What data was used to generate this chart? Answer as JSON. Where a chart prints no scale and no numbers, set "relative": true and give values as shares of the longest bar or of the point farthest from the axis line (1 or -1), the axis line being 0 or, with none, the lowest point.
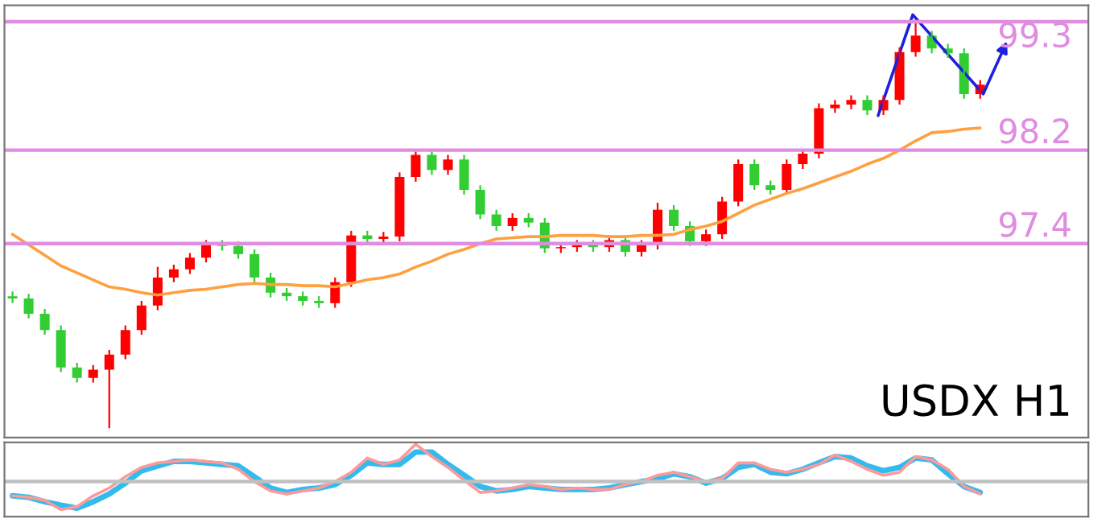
{
  "chart_data": [
    {
      "type": "candlestick",
      "categories": [
        null,
        null,
        null,
        null,
        null,
        null,
        null,
        null,
        null,
        null,
        null,
        null,
        null,
        null,
        null,
        null,
        null,
        null,
        null,
        null,
        null,
        null,
        null,
        null,
        null,
        null,
        null,
        null,
        null,
        null,
        null,
        null,
        null,
        null,
        null,
        null,
        null,
        null,
        null,
        null,
        null,
        null,
        null,
        null,
        null,
        null,
        null,
        null,
        null,
        null,
        null,
        null,
        null,
        null,
        null,
        null,
        null,
        null,
        null,
        null,
        null
      ],
      "ohlc": [
        [
          96.95,
          96.99,
          96.89,
          96.93
        ],
        [
          96.93,
          96.97,
          96.76,
          96.8
        ],
        [
          96.8,
          96.84,
          96.62,
          96.66
        ],
        [
          96.66,
          96.7,
          96.3,
          96.34
        ],
        [
          96.34,
          96.38,
          96.21,
          96.25
        ],
        [
          96.25,
          96.36,
          96.21,
          96.32
        ],
        [
          96.32,
          96.49,
          95.82,
          96.45
        ],
        [
          96.45,
          96.7,
          96.41,
          96.66
        ],
        [
          96.66,
          96.91,
          96.62,
          96.87
        ],
        [
          96.87,
          97.2,
          96.83,
          97.11
        ],
        [
          97.11,
          97.22,
          97.07,
          97.18
        ],
        [
          97.18,
          97.32,
          97.14,
          97.28
        ],
        [
          97.28,
          97.43,
          97.24,
          97.39
        ],
        [
          97.39,
          97.43,
          97.34,
          97.38
        ],
        [
          97.38,
          97.42,
          97.27,
          97.31
        ],
        [
          97.31,
          97.35,
          97.07,
          97.11
        ],
        [
          97.11,
          97.15,
          96.94,
          96.98
        ],
        [
          96.98,
          97.02,
          96.91,
          96.95
        ],
        [
          96.95,
          96.99,
          96.87,
          96.91
        ],
        [
          96.91,
          96.95,
          96.85,
          96.89
        ],
        [
          96.89,
          97.11,
          96.85,
          97.07
        ],
        [
          97.07,
          97.51,
          97.03,
          97.47
        ],
        [
          97.47,
          97.51,
          97.4,
          97.44
        ],
        [
          97.44,
          97.5,
          97.4,
          97.46
        ],
        [
          97.46,
          98.01,
          97.42,
          97.97
        ],
        [
          97.97,
          98.2,
          97.93,
          98.16
        ],
        [
          98.16,
          98.2,
          97.99,
          98.03
        ],
        [
          98.03,
          98.16,
          97.99,
          98.12
        ],
        [
          98.12,
          98.16,
          97.82,
          97.86
        ],
        [
          97.86,
          97.9,
          97.61,
          97.65
        ],
        [
          97.65,
          97.69,
          97.51,
          97.55
        ],
        [
          97.55,
          97.66,
          97.51,
          97.62
        ],
        [
          97.62,
          97.66,
          97.54,
          97.58
        ],
        [
          97.58,
          97.62,
          97.32,
          97.36
        ],
        [
          97.36,
          97.41,
          97.32,
          97.37
        ],
        [
          97.37,
          97.43,
          97.33,
          97.39
        ],
        [
          97.39,
          97.43,
          97.33,
          97.37
        ],
        [
          97.37,
          97.47,
          97.33,
          97.43
        ],
        [
          97.43,
          97.47,
          97.29,
          97.33
        ],
        [
          97.33,
          97.43,
          97.29,
          97.39
        ],
        [
          97.39,
          97.75,
          97.35,
          97.69
        ],
        [
          97.69,
          97.73,
          97.51,
          97.55
        ],
        [
          97.55,
          97.59,
          97.38,
          97.42
        ],
        [
          97.42,
          97.52,
          97.38,
          97.48
        ],
        [
          97.48,
          97.8,
          97.44,
          97.76
        ],
        [
          97.76,
          98.12,
          97.72,
          98.08
        ],
        [
          98.08,
          98.12,
          97.86,
          97.9
        ],
        [
          97.9,
          97.94,
          97.82,
          97.86
        ],
        [
          97.86,
          98.12,
          97.82,
          98.08
        ],
        [
          98.08,
          98.21,
          98.04,
          98.17
        ],
        [
          98.17,
          98.6,
          98.13,
          98.56
        ],
        [
          98.56,
          98.63,
          98.52,
          98.59
        ],
        [
          98.59,
          98.67,
          98.55,
          98.63
        ],
        [
          98.63,
          98.67,
          98.5,
          98.54
        ],
        [
          98.54,
          98.67,
          98.5,
          98.63
        ],
        [
          98.63,
          99.08,
          98.59,
          99.04
        ],
        [
          99.04,
          99.3,
          99.0,
          99.18
        ],
        [
          99.18,
          99.22,
          99.03,
          99.07
        ],
        [
          99.07,
          99.11,
          98.99,
          99.03
        ],
        [
          99.03,
          99.07,
          98.64,
          98.68
        ],
        [
          98.68,
          98.8,
          98.64,
          98.76
        ]
      ],
      "colors": [
        "#32cd32",
        "#32cd32",
        "#32cd32",
        "#32cd32",
        "#32cd32",
        "#ff0000",
        "#ff0000",
        "#ff0000",
        "#ff0000",
        "#ff0000",
        "#ff0000",
        "#ff0000",
        "#ff0000",
        "#32cd32",
        "#32cd32",
        "#32cd32",
        "#32cd32",
        "#32cd32",
        "#32cd32",
        "#32cd32",
        "#ff0000",
        "#ff0000",
        "#32cd32",
        "#ff0000",
        "#ff0000",
        "#ff0000",
        "#32cd32",
        "#ff0000",
        "#32cd32",
        "#32cd32",
        "#32cd32",
        "#ff0000",
        "#32cd32",
        "#32cd32",
        "#ff0000",
        "#ff0000",
        "#32cd32",
        "#ff0000",
        "#32cd32",
        "#ff0000",
        "#ff0000",
        "#32cd32",
        "#32cd32",
        "#ff0000",
        "#ff0000",
        "#ff0000",
        "#32cd32",
        "#32cd32",
        "#ff0000",
        "#ff0000",
        "#ff0000",
        "#ff0000",
        "#ff0000",
        "#32cd32",
        "#ff0000",
        "#ff0000",
        "#ff0000",
        "#32cd32",
        "#32cd32",
        "#32cd32",
        "#ff0000"
      ],
      "series": [
        {
          "type": "line",
          "color": "#ffa040",
          "values": [
            97.48,
            97.39,
            97.3,
            97.21,
            97.15,
            97.09,
            97.03,
            97.01,
            96.98,
            96.96,
            96.98,
            97.0,
            97.01,
            97.03,
            97.05,
            97.06,
            97.05,
            97.05,
            97.04,
            97.04,
            97.03,
            97.06,
            97.09,
            97.11,
            97.14,
            97.2,
            97.25,
            97.31,
            97.35,
            97.4,
            97.44,
            97.45,
            97.46,
            97.46,
            97.47,
            97.47,
            97.47,
            97.46,
            97.46,
            97.47,
            97.47,
            97.48,
            97.52,
            97.55,
            97.59,
            97.66,
            97.73,
            97.78,
            97.83,
            97.87,
            97.92,
            97.97,
            98.02,
            98.08,
            98.13,
            98.2,
            98.28,
            98.35,
            98.36,
            98.38,
            98.39
          ]
        }
      ],
      "ylim": [
        95.74,
        99.44
      ],
      "ref_lines": [
        {
          "axis": "y",
          "value": 99.3,
          "label": "99.3",
          "color": "#e08ce0"
        },
        {
          "axis": "y",
          "value": 98.2,
          "label": "98.2",
          "color": "#e08ce0"
        },
        {
          "axis": "y",
          "value": 97.4,
          "label": "97.4",
          "color": "#e08ce0"
        }
      ],
      "annotations": [
        "USDX H1"
      ],
      "grid": false,
      "legend": false
    },
    {
      "type": "line",
      "relative": true,
      "categories": [
        null,
        null,
        null,
        null,
        null,
        null,
        null,
        null,
        null,
        null,
        null,
        null,
        null,
        null,
        null,
        null,
        null,
        null,
        null,
        null,
        null,
        null,
        null,
        null,
        null,
        null,
        null,
        null,
        null,
        null,
        null,
        null,
        null,
        null,
        null,
        null,
        null,
        null,
        null,
        null,
        null,
        null,
        null,
        null,
        null,
        null,
        null,
        null,
        null,
        null,
        null,
        null,
        null,
        null,
        null,
        null,
        null,
        null,
        null,
        null,
        null
      ],
      "series": [
        {
          "color": "#33bbee",
          "values": [
            -0.38,
            -0.42,
            -0.54,
            -0.63,
            -0.71,
            -0.54,
            -0.33,
            -0.04,
            0.29,
            0.42,
            0.54,
            0.54,
            0.5,
            0.46,
            0.42,
            0.13,
            -0.17,
            -0.29,
            -0.21,
            -0.17,
            -0.08,
            0.17,
            0.5,
            0.46,
            0.46,
            0.79,
            0.79,
            0.46,
            0.17,
            -0.13,
            -0.25,
            -0.21,
            -0.13,
            -0.17,
            -0.21,
            -0.21,
            -0.21,
            -0.17,
            -0.08,
            0,
            0.08,
            0.21,
            0.13,
            -0.04,
            0.08,
            0.38,
            0.46,
            0.25,
            0.21,
            0.33,
            0.5,
            0.67,
            0.63,
            0.42,
            0.29,
            0.38,
            0.63,
            0.58,
            0.21,
            -0.13,
            -0.29
          ]
        },
        {
          "color": "#ff9999",
          "values": [
            -0.38,
            -0.42,
            -0.5,
            -0.75,
            -0.67,
            -0.38,
            -0.17,
            0.13,
            0.38,
            0.5,
            0.54,
            0.58,
            0.54,
            0.5,
            0.33,
            0,
            -0.25,
            -0.33,
            -0.25,
            -0.17,
            0,
            0.25,
            0.63,
            0.46,
            0.58,
            1,
            0.67,
            0.38,
            0.04,
            -0.29,
            -0.25,
            -0.17,
            -0.08,
            -0.13,
            -0.21,
            -0.17,
            -0.21,
            -0.21,
            -0.08,
            0,
            0.17,
            0.25,
            0.13,
            0,
            0.08,
            0.5,
            0.5,
            0.33,
            0.25,
            0.33,
            0.46,
            0.71,
            0.54,
            0.33,
            0.17,
            0.25,
            0.67,
            0.58,
            0.33,
            -0.13,
            -0.33
          ]
        }
      ],
      "ref_lines": [
        {
          "axis": "y",
          "value": 0,
          "color": "#c0c0c0"
        }
      ],
      "grid": false,
      "legend": false
    }
  ]
}
